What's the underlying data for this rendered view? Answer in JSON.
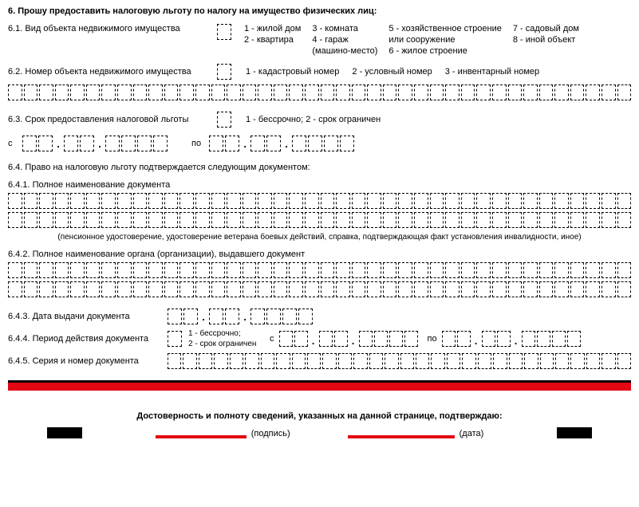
{
  "section6": {
    "title": "6. Прошу предоставить налоговую льготу по налогу на имущество физических лиц:",
    "s61": {
      "label": "6.1. Вид объекта недвижимого имущества",
      "legend": {
        "c1a": "1 - жилой дом",
        "c1b": "2 - квартира",
        "c2a": "3 - комната",
        "c2b": "4 - гараж",
        "c2c": "(машино-место)",
        "c3a": "5 - хозяйственное строение",
        "c3b": "или сооружение",
        "c3c": "6 - жилое строение",
        "c4a": "7 - садовый дом",
        "c4b": "8 - иной объект"
      }
    },
    "s62": {
      "label": "6.2. Номер объекта недвижимого имущества",
      "legend": {
        "a": "1 - кадастровый номер",
        "b": "2 - условный номер",
        "c": "3 - инвентарный номер"
      }
    },
    "s63": {
      "label": "6.3. Срок предоставления налоговой льготы",
      "legend": "1 - бессрочно; 2 - срок ограничен",
      "from": "с",
      "to": "по"
    },
    "s64": {
      "label": "6.4. Право на налоговую льготу подтверждается следующим документом:",
      "s641": "6.4.1. Полное наименование документа",
      "s641_hint": "(пенсионное удостоверение, удостоверение ветерана боевых действий, справка, подтверждающая факт установления инвалидности, иное)",
      "s642": "6.4.2. Полное наименование органа (организации), выдавшего документ",
      "s643": "6.4.3. Дата выдачи документа",
      "s644": {
        "label": "6.4.4. Период действия документа",
        "legend1": "1 - бессрочно;",
        "legend2": "2 - срок ограничен",
        "from": "с",
        "to": "по"
      },
      "s645": "6.4.5. Серия и номер документа"
    }
  },
  "footer": {
    "title": "Достоверность и полноту сведений, указанных на данной странице, подтверждаю:",
    "sig": "(подпись)",
    "date": "(дата)"
  }
}
